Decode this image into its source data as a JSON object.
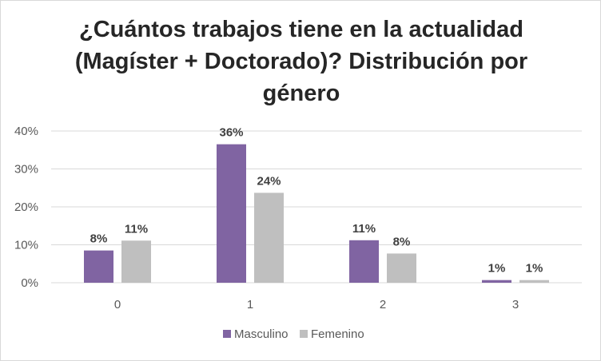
{
  "chart_data": {
    "type": "bar",
    "title": "¿Cuántos trabajos tiene en la actualidad (Magíster + Doctorado)? Distribución por género",
    "categories": [
      "0",
      "1",
      "2",
      "3"
    ],
    "series": [
      {
        "name": "Masculino",
        "values": [
          8.5,
          36.5,
          11.2,
          0.7
        ],
        "labels": [
          "8%",
          "36%",
          "11%",
          "1%"
        ],
        "color": "#8064a2"
      },
      {
        "name": "Femenino",
        "values": [
          11.1,
          23.7,
          7.7,
          0.7
        ],
        "labels": [
          "11%",
          "24%",
          "8%",
          "1%"
        ],
        "color": "#bfbfbf"
      }
    ],
    "ylim": [
      0,
      40
    ],
    "yticks": [
      {
        "value": 0,
        "label": "0%"
      },
      {
        "value": 10,
        "label": "10%"
      },
      {
        "value": 20,
        "label": "20%"
      },
      {
        "value": 30,
        "label": "30%"
      },
      {
        "value": 40,
        "label": "40%"
      }
    ],
    "grid": true,
    "legend": "bottom",
    "colors": {
      "axis": "#d9d9d9",
      "grid": "#d9d9d9"
    }
  }
}
